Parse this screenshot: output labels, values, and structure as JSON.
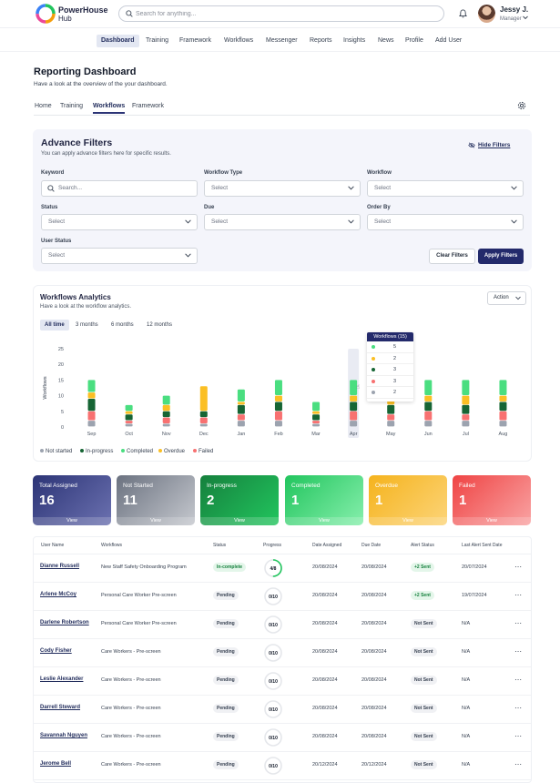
{
  "app": {
    "logo_line1": "PowerHouse",
    "logo_line2": "Hub",
    "search_placeholder": "Search for anything...",
    "user_name": "Jessy J.",
    "user_role": "Manager"
  },
  "nav": {
    "items": [
      "Dashboard",
      "Training",
      "Framework",
      "Workflows",
      "Messenger",
      "Reports",
      "Insights",
      "News",
      "Profile",
      "Add User"
    ]
  },
  "page": {
    "title": "Reporting Dashboard",
    "subtitle": "Have a look at the overview of the your dashboard."
  },
  "tabs": [
    "Home",
    "Training",
    "Workflows",
    "Framework"
  ],
  "filters": {
    "title": "Advance Filters",
    "subtitle": "You can apply advance filters here for specific results.",
    "hide_label": "Hide Filters",
    "keyword_label": "Keyword",
    "keyword_placeholder": "Search...",
    "workflow_type_label": "Workflow Type",
    "workflow_label": "Workflow",
    "status_label": "Status",
    "due_label": "Due",
    "order_by_label": "Order By",
    "user_status_label": "User Status",
    "select_placeholder": "Select",
    "clear_label": "Clear Filters",
    "apply_label": "Apply Filters"
  },
  "analytics": {
    "title": "Workflows Analytics",
    "subtitle": "Have a look at the workflow analytics.",
    "action_label": "Action",
    "ranges": [
      "All time",
      "3 months",
      "6 months",
      "12 months"
    ],
    "tooltip_title": "Workflows (15)",
    "tooltip_values": [
      "5",
      "2",
      "3",
      "3",
      "2"
    ]
  },
  "chart_data": {
    "type": "bar",
    "stacked": true,
    "ylabel": "Workflows",
    "ylim": [
      0,
      25
    ],
    "yticks": [
      0,
      5,
      10,
      15,
      20,
      25
    ],
    "categories": [
      "Sep",
      "Oct",
      "Nov",
      "Dec",
      "Jan",
      "Feb",
      "Mar",
      "Apr",
      "May",
      "Jun",
      "Jul",
      "Aug"
    ],
    "highlighted": "Apr",
    "series": [
      {
        "name": "Not started",
        "color": "#9ca3af",
        "values": [
          2,
          1,
          1,
          1,
          2,
          2,
          1,
          2,
          2,
          2,
          2,
          2
        ]
      },
      {
        "name": "Failed",
        "color": "#f87171",
        "values": [
          3,
          1,
          2,
          2,
          2,
          3,
          1,
          3,
          2,
          3,
          2,
          3
        ]
      },
      {
        "name": "In-progress",
        "color": "#166534",
        "values": [
          4,
          2,
          2,
          2,
          3,
          3,
          2,
          3,
          3,
          3,
          3,
          3
        ]
      },
      {
        "name": "Overdue",
        "color": "#fbbf24",
        "values": [
          2,
          1,
          2,
          8,
          1,
          2,
          1,
          2,
          2,
          2,
          3,
          2
        ]
      },
      {
        "name": "Completed",
        "color": "#4ade80",
        "values": [
          4,
          2,
          3,
          0,
          4,
          5,
          3,
          5,
          5,
          5,
          5,
          5
        ]
      }
    ],
    "legend": {
      "placement": "bottom-left",
      "entries": [
        "Not started",
        "In-progress",
        "Completed",
        "Overdue",
        "Failed"
      ],
      "colors": [
        "#9ca3af",
        "#166534",
        "#4ade80",
        "#fbbf24",
        "#f87171"
      ]
    },
    "tooltip_colors": [
      "#4ade80",
      "#fbbf24",
      "#166534",
      "#f87171",
      "#9ca3af"
    ]
  },
  "cards": [
    {
      "label": "Total Assigned",
      "value": "16",
      "view": "View",
      "bg": "linear-gradient(135deg,#2c3476,#6b71b0)"
    },
    {
      "label": "Not Started",
      "value": "11",
      "view": "View",
      "bg": "linear-gradient(135deg,#6b7280,#c5c8ce)"
    },
    {
      "label": "In-progress",
      "value": "2",
      "view": "View",
      "bg": "linear-gradient(135deg,#15803d,#22c55e)"
    },
    {
      "label": "Completed",
      "value": "1",
      "view": "View",
      "bg": "linear-gradient(135deg,#22c55e,#86efac)"
    },
    {
      "label": "Overdue",
      "value": "1",
      "view": "View",
      "bg": "linear-gradient(135deg,#f5b31d,#fcd478)"
    },
    {
      "label": "Failed",
      "value": "1",
      "view": "View",
      "bg": "linear-gradient(135deg,#ef4444,#f9a3a3)"
    }
  ],
  "table": {
    "headers": [
      "User Name",
      "Workflows",
      "Status",
      "Progress",
      "Date Assigned",
      "Due Date",
      "Alert Status",
      "Last Alert Sent Date"
    ],
    "rows": [
      {
        "name": "Dianne Russell",
        "workflow": "New Staff Safety Onboarding Program",
        "status": "In-complete",
        "progress": "4/8",
        "progress_frac": 0.5,
        "assigned": "20/08/2024",
        "due": "20/08/2024",
        "alert": "+2 Sent",
        "last_alert": "20/07/2024"
      },
      {
        "name": "Arlene McCoy",
        "workflow": "Personal Care Worker Pre-screen",
        "status": "Pending",
        "progress": "0/10",
        "progress_frac": 0,
        "assigned": "20/08/2024",
        "due": "20/08/2024",
        "alert": "+2 Sent",
        "last_alert": "19/07/2024"
      },
      {
        "name": "Darlene Robertson",
        "workflow": "Personal Care Worker Pre-screen",
        "status": "Pending",
        "progress": "0/10",
        "progress_frac": 0,
        "assigned": "20/08/2024",
        "due": "20/08/2024",
        "alert": "Not Sent",
        "last_alert": "N/A"
      },
      {
        "name": "Cody Fisher",
        "workflow": "Care Workers - Pre-screen",
        "status": "Pending",
        "progress": "0/10",
        "progress_frac": 0,
        "assigned": "20/08/2024",
        "due": "20/08/2024",
        "alert": "Not Sent",
        "last_alert": "N/A"
      },
      {
        "name": "Leslie Alexander",
        "workflow": "Care Workers - Pre-screen",
        "status": "Pending",
        "progress": "0/10",
        "progress_frac": 0,
        "assigned": "20/08/2024",
        "due": "20/08/2024",
        "alert": "Not Sent",
        "last_alert": "N/A"
      },
      {
        "name": "Darrell Steward",
        "workflow": "Care Workers - Pre-screen",
        "status": "Pending",
        "progress": "0/10",
        "progress_frac": 0,
        "assigned": "20/08/2024",
        "due": "20/08/2024",
        "alert": "Not Sent",
        "last_alert": "N/A"
      },
      {
        "name": "Savannah Nguyen",
        "workflow": "Care Workers - Pre-screen",
        "status": "Pending",
        "progress": "0/10",
        "progress_frac": 0,
        "assigned": "20/08/2024",
        "due": "20/08/2024",
        "alert": "Not Sent",
        "last_alert": "N/A"
      },
      {
        "name": "Jerome Bell",
        "workflow": "Care Workers - Pre-screen",
        "status": "Pending",
        "progress": "0/10",
        "progress_frac": 0,
        "assigned": "20/12/2024",
        "due": "20/12/2024",
        "alert": "Not Sent",
        "last_alert": "N/A"
      }
    ]
  }
}
